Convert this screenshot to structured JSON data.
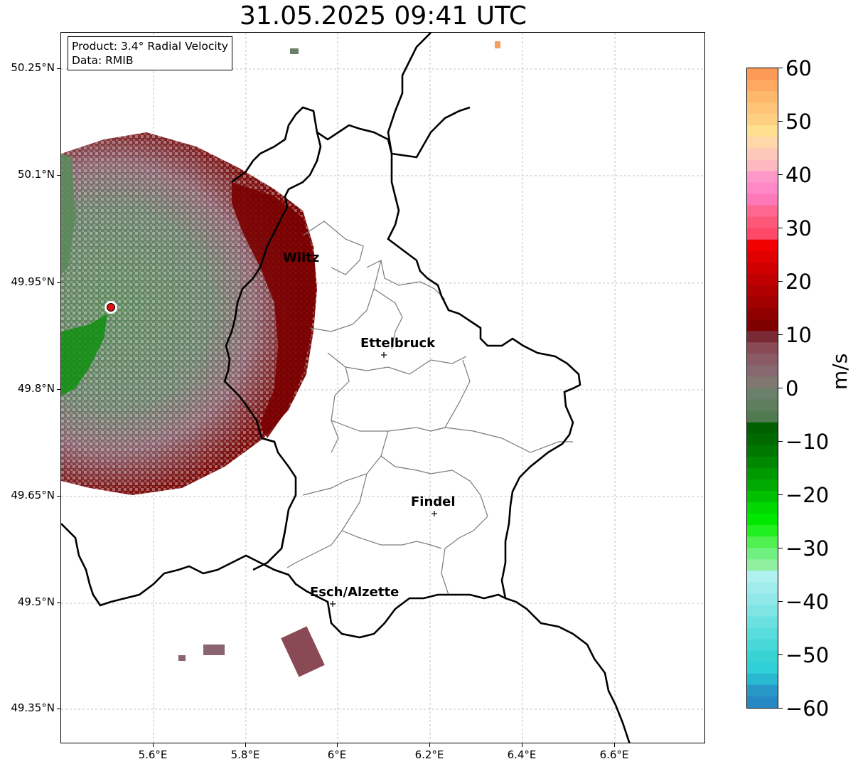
{
  "title": "31.05.2025 09:41 UTC",
  "info": {
    "product": "Product: 3.4° Radial Velocity",
    "data": "Data: RMIB"
  },
  "cities": [
    {
      "name": "Wiltz",
      "key": "wiltz"
    },
    {
      "name": "Ettelbruck",
      "key": "ettelbruck"
    },
    {
      "name": "Findel",
      "key": "findel"
    },
    {
      "name": "Esch/Alzette",
      "key": "esch"
    }
  ],
  "axes": {
    "y_ticks": [
      "50.25°N",
      "50.1°N",
      "49.95°N",
      "49.8°N",
      "49.65°N",
      "49.5°N",
      "49.35°N"
    ],
    "x_ticks": [
      "5.6°E",
      "5.8°E",
      "6°E",
      "6.2°E",
      "6.4°E",
      "6.6°E"
    ],
    "grid": "on, dashed"
  },
  "colorbar": {
    "unit": "m/s",
    "ticks": [
      "60",
      "50",
      "40",
      "30",
      "20",
      "10",
      "0",
      "−10",
      "−20",
      "−30",
      "−40",
      "−50",
      "−60"
    ],
    "range": [
      -60,
      60
    ]
  },
  "colors": {
    "outward": "#7a0000",
    "inward": "#0a8a0a",
    "near_zero_pos": "#8a6470",
    "near_zero_neg": "#6b806b",
    "radar_site": "#e01010"
  }
}
